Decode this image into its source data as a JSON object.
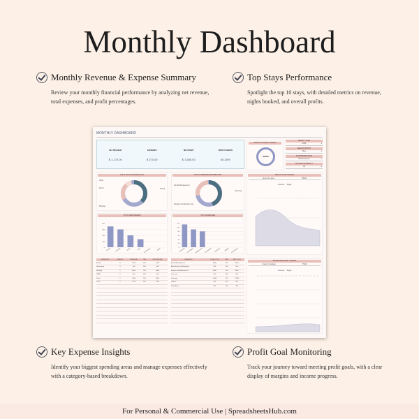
{
  "title": "Monthly Dashboard",
  "features": [
    {
      "title": "Monthly Revenue & Expense Summary",
      "desc": "Review your monthly financial performance by analyzing net revenue, total expenses, and profit percentages."
    },
    {
      "title": "Top Stays Performance",
      "desc": "Spotlight the top 10 stays, with detailed metrics on revenue, nights booked, and overall profits."
    },
    {
      "title": "Key Expense Insights",
      "desc": "Identify your biggest spending areas and manage expenses effectively with a category-based breakdown."
    },
    {
      "title": "Profit Goal Monitoring",
      "desc": "Track your journey toward meeting profit goals, with a clear display of margins and income progress."
    }
  ],
  "footer": "For Personal & Commercial Use  |  SpreadsheetsHub.com",
  "dashboard": {
    "title": "MONTHLY DASHBOARD",
    "kpis": [
      {
        "label": "NET REVENUE",
        "value": "$ 1,170.00"
      },
      {
        "label": "EXPENSES",
        "value": "$ 370.00"
      },
      {
        "label": "NET PROFIT",
        "value": "$ 1,680.00"
      },
      {
        "label": "PROFIT MARGIN",
        "value": "65.28%"
      }
    ],
    "profit_target": {
      "label": "MONTHLY PROFIT TARGET",
      "value": "56.00%",
      "progress": 0.56
    },
    "selects": [
      {
        "label": "SELECT YEAR",
        "value": "2025"
      },
      {
        "label": "SELECT MONTH",
        "value": "May"
      },
      {
        "label": "DASHBOARD VIEW",
        "value": "Rental Income"
      },
      {
        "label": "CHOOSE PROPERTY",
        "value": "All"
      }
    ],
    "donut1": {
      "title": "TOP 6 STAYS DISTRIBUTION",
      "labels": [
        "Other",
        "Direct",
        "Booking",
        "Airbnb"
      ]
    },
    "donut2": {
      "title": "TOP 6 EXPENSES DISTRIBUTION",
      "labels": [
        "Rental Management",
        "Repairs and Maintenance",
        "Cleaning"
      ]
    },
    "bar1": {
      "title": "TOP 6 PERFORMERS",
      "ticks": [
        "800",
        "600",
        "400",
        "200",
        "0"
      ],
      "max": 800,
      "categories": [
        "Airbnb",
        "Booking",
        "Direct",
        "Vrbo",
        "Homeaway",
        "Other"
      ],
      "values": [
        700,
        600,
        400,
        270,
        0,
        0
      ]
    },
    "bar2": {
      "title": "TOP 8 EXPENSES",
      "ticks": [
        "120",
        "100",
        "80",
        "60",
        "40",
        "20",
        "0"
      ],
      "max": 120,
      "categories": [
        "Cleaning",
        "Repairs and Maint.",
        "Rental Management",
        "Advertising",
        "Insurance",
        "Utilities",
        "Broadband"
      ],
      "values": [
        115,
        90,
        80,
        0,
        0,
        0,
        0
      ]
    },
    "table1": {
      "headers": [
        "CATEGORY",
        "NIGHTS",
        "REVENUE",
        "TAX",
        "NET INCOME"
      ],
      "rows": [
        [
          "Airbnb",
          "6",
          "7000",
          "100",
          "7000"
        ],
        [
          "Homeaway",
          "0",
          "500",
          "100",
          "500"
        ],
        [
          "Booking",
          "6",
          "6000",
          "100",
          "6000"
        ],
        [
          "VRBO",
          "2",
          "500",
          "100",
          "500"
        ],
        [
          "Direct",
          "2",
          "5000",
          "100",
          "5000"
        ],
        [
          "Other",
          "2",
          "2700",
          "100",
          "2700"
        ]
      ]
    },
    "table2": {
      "headers": [
        "CATEGORY",
        "TOTAL COST",
        "TAX",
        "NET COST"
      ],
      "rows": [
        [
          "Rental Management",
          "8000",
          "100",
          "8000"
        ],
        [
          "Advertising and Marketing",
          "500",
          "100",
          "500"
        ],
        [
          "Repairs and Maintenance",
          "9000",
          "100",
          "9000"
        ],
        [
          "Insurance",
          "500",
          "100",
          "500"
        ],
        [
          "Cleaning",
          "11500",
          "100",
          "11500"
        ],
        [
          "Utilities",
          "500",
          "100",
          "500"
        ],
        [
          "Broadband",
          "500",
          "100",
          "500"
        ]
      ]
    },
    "profit_goal": {
      "title": "PROFIT GOAL TARGET",
      "status": "Above the goal",
      "value": "68000",
      "legend": [
        "Actual",
        "Target"
      ]
    },
    "expense_budget": {
      "title": "EXPENSE BUDGET TARGET",
      "status": "Under the budget",
      "value": "75000",
      "legend": [
        "Actual",
        "Target"
      ]
    },
    "colors": {
      "accent": "#e8c0b9",
      "bar": "#8f97c4",
      "donut_dark": "#4b6f80",
      "donut_blue": "#a3a8cf",
      "donut_pink": "#e8c0b9"
    }
  }
}
